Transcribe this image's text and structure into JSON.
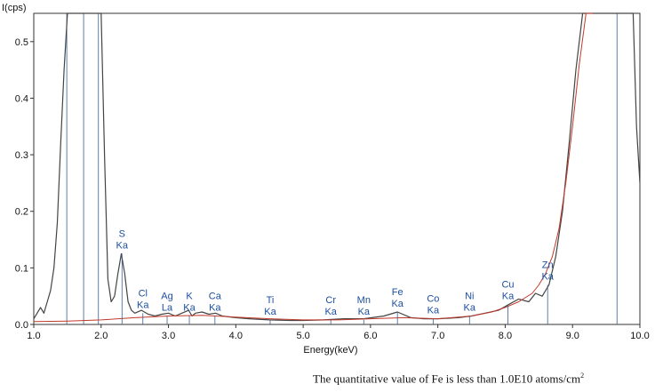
{
  "chart_data": {
    "type": "line",
    "title": "",
    "xlabel": "Energy(keV)",
    "ylabel": "I(cps)",
    "xlim": [
      1.0,
      10.0
    ],
    "ylim": [
      0.0,
      0.55
    ],
    "xticks": [
      "1.0",
      "2.0",
      "3.0",
      "4.0",
      "5.0",
      "6.0",
      "7.0",
      "8.0",
      "9.0",
      "10.0"
    ],
    "yticks": [
      "0.0",
      "0.1",
      "0.2",
      "0.3",
      "0.4",
      "0.5"
    ],
    "grid": false,
    "colors": {
      "measured": "#444444",
      "fit": "#c0392b",
      "marker": "#3b5f8f",
      "label": "#1b4fa0"
    },
    "series": [
      {
        "role": "measured",
        "x": [
          1.0,
          1.05,
          1.1,
          1.15,
          1.2,
          1.25,
          1.3,
          1.35,
          1.4,
          1.45,
          1.5,
          1.55,
          1.6,
          1.7,
          1.8,
          1.85,
          1.9,
          1.95,
          2.0,
          2.05,
          2.1,
          2.15,
          2.2,
          2.25,
          2.3,
          2.35,
          2.4,
          2.45,
          2.5,
          2.6,
          2.7,
          2.8,
          2.9,
          3.0,
          3.1,
          3.2,
          3.3,
          3.35,
          3.4,
          3.5,
          3.6,
          3.7,
          3.8,
          4.0,
          4.2,
          4.5,
          4.8,
          5.0,
          5.3,
          5.6,
          5.9,
          6.2,
          6.4,
          6.6,
          6.8,
          7.0,
          7.3,
          7.5,
          7.7,
          7.9,
          8.05,
          8.2,
          8.35,
          8.45,
          8.55,
          8.65,
          8.75,
          8.85,
          8.95,
          9.05,
          9.15,
          9.2,
          9.3,
          9.4,
          9.5,
          9.6,
          9.7,
          9.8,
          9.9,
          9.95,
          10.0
        ],
        "y": [
          0.01,
          0.02,
          0.03,
          0.02,
          0.04,
          0.06,
          0.1,
          0.18,
          0.32,
          0.45,
          0.55,
          0.55,
          0.55,
          0.55,
          0.55,
          0.55,
          0.55,
          0.55,
          0.55,
          0.3,
          0.08,
          0.04,
          0.05,
          0.09,
          0.125,
          0.09,
          0.04,
          0.025,
          0.02,
          0.025,
          0.018,
          0.015,
          0.018,
          0.02,
          0.015,
          0.02,
          0.025,
          0.015,
          0.02,
          0.022,
          0.018,
          0.02,
          0.015,
          0.012,
          0.01,
          0.008,
          0.007,
          0.007,
          0.008,
          0.01,
          0.01,
          0.015,
          0.022,
          0.012,
          0.01,
          0.01,
          0.012,
          0.015,
          0.02,
          0.025,
          0.035,
          0.045,
          0.04,
          0.055,
          0.05,
          0.07,
          0.12,
          0.2,
          0.32,
          0.45,
          0.55,
          0.55,
          0.55,
          0.55,
          0.55,
          0.55,
          0.55,
          0.55,
          0.55,
          0.35,
          0.25
        ]
      },
      {
        "role": "fit",
        "x": [
          1.0,
          1.5,
          2.0,
          2.5,
          3.0,
          3.5,
          4.0,
          4.5,
          5.0,
          5.5,
          6.0,
          6.5,
          7.0,
          7.5,
          7.8,
          8.0,
          8.2,
          8.4,
          8.5,
          8.6,
          8.7,
          8.8,
          8.9,
          9.0,
          9.1,
          9.2,
          9.3
        ],
        "y": [
          0.005,
          0.006,
          0.008,
          0.012,
          0.015,
          0.016,
          0.013,
          0.01,
          0.008,
          0.008,
          0.01,
          0.012,
          0.01,
          0.015,
          0.022,
          0.03,
          0.04,
          0.055,
          0.07,
          0.09,
          0.12,
          0.17,
          0.25,
          0.35,
          0.46,
          0.55,
          0.55
        ]
      }
    ],
    "markers": [
      1.49,
      1.74,
      1.96,
      9.66
    ],
    "peaks": [
      {
        "element": "S",
        "line": "Ka",
        "energy": 2.31,
        "y": 0.125
      },
      {
        "element": "Cl",
        "line": "Ka",
        "energy": 2.62,
        "y": 0.02
      },
      {
        "element": "Ag",
        "line": "La",
        "energy": 2.98,
        "y": 0.015
      },
      {
        "element": "K",
        "line": "Ka",
        "energy": 3.31,
        "y": 0.015
      },
      {
        "element": "Ca",
        "line": "Ka",
        "energy": 3.69,
        "y": 0.015
      },
      {
        "element": "Ti",
        "line": "Ka",
        "energy": 4.51,
        "y": 0.008
      },
      {
        "element": "Cr",
        "line": "Ka",
        "energy": 5.41,
        "y": 0.008
      },
      {
        "element": "Mn",
        "line": "Ka",
        "energy": 5.9,
        "y": 0.008
      },
      {
        "element": "Fe",
        "line": "Ka",
        "energy": 6.4,
        "y": 0.022
      },
      {
        "element": "Co",
        "line": "Ka",
        "energy": 6.93,
        "y": 0.01
      },
      {
        "element": "Ni",
        "line": "Ka",
        "energy": 7.47,
        "y": 0.015
      },
      {
        "element": "Cu",
        "line": "Ka",
        "energy": 8.04,
        "y": 0.035
      },
      {
        "element": "Zn",
        "line": "Ka",
        "energy": 8.63,
        "y": 0.07
      }
    ]
  },
  "caption": {
    "text": "The quantitative value of  Fe is less than 1.0E10 atoms/cm",
    "superscript": "2"
  }
}
